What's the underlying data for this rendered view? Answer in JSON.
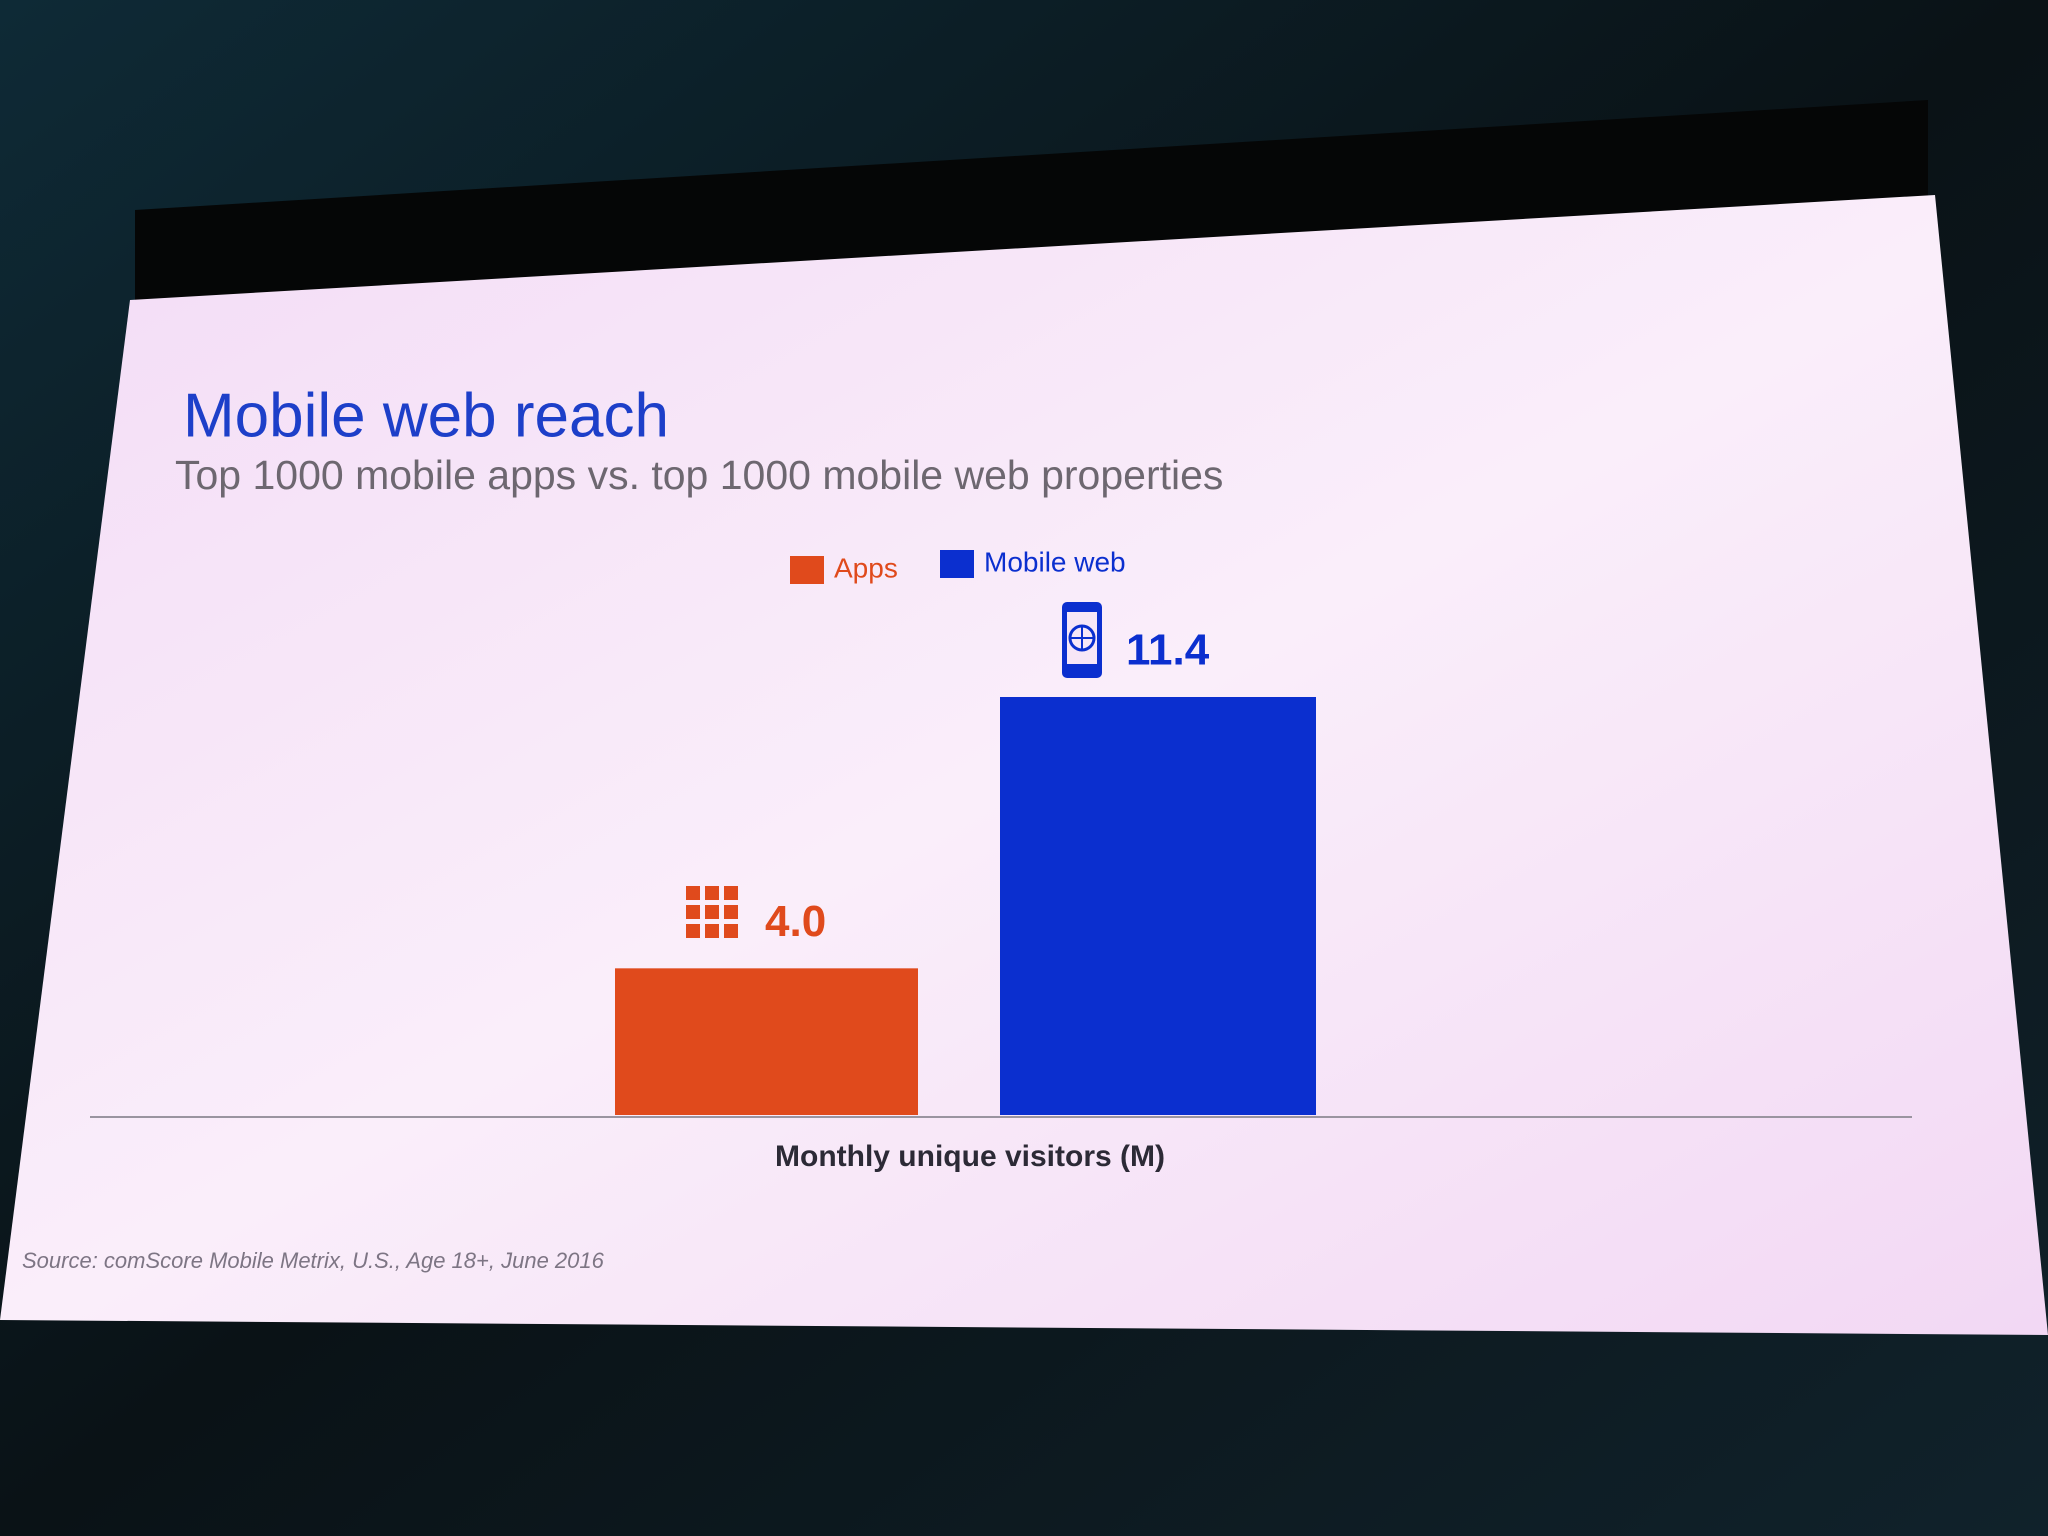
{
  "chart_data": {
    "type": "bar",
    "title": "Mobile web reach",
    "subtitle": "Top 1000 mobile apps vs. top 1000 mobile web properties",
    "series": [
      {
        "name": "Apps",
        "color": "#e04a1c",
        "values": [
          4.0
        ],
        "value_labels": [
          "4.0"
        ]
      },
      {
        "name": "Mobile web",
        "color": "#0b2fcf",
        "values": [
          11.4
        ],
        "value_labels": [
          "11.4"
        ]
      }
    ],
    "x_label": "Monthly unique visitors (M)",
    "source": "Source: comScore Mobile Metrix, U.S., Age 18+, June 2016"
  }
}
